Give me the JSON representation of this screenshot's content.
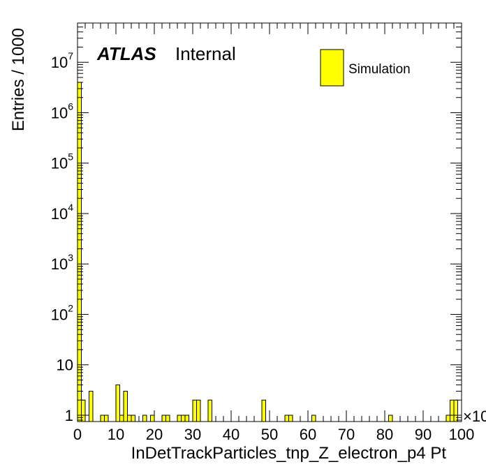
{
  "chart_data": {
    "type": "bar",
    "xlabel": "InDetTrackParticles_tnp_Z_electron_p4 Pt",
    "ylabel": "Entries / 1000",
    "x_multiplier_label": "×10",
    "xlim": [
      0,
      100
    ],
    "ylim": [
      0.75,
      60000000
    ],
    "y_scale": "log",
    "x_ticks": [
      "0",
      "10",
      "20",
      "30",
      "40",
      "50",
      "60",
      "70",
      "80",
      "90",
      "100"
    ],
    "y_ticks": [
      {
        "value": 1,
        "base": "1",
        "exp": ""
      },
      {
        "value": 10,
        "base": "10",
        "exp": ""
      },
      {
        "value": 100,
        "base": "10",
        "exp": "2"
      },
      {
        "value": 1000,
        "base": "10",
        "exp": "3"
      },
      {
        "value": 10000,
        "base": "10",
        "exp": "4"
      },
      {
        "value": 100000,
        "base": "10",
        "exp": "5"
      },
      {
        "value": 1000000,
        "base": "10",
        "exp": "6"
      },
      {
        "value": 10000000,
        "base": "10",
        "exp": "7"
      }
    ],
    "bin_width": 1,
    "series": [
      {
        "name": "Simulation",
        "color": "#ffff00",
        "bins": [
          {
            "x": 0,
            "y": 4000000
          },
          {
            "x": 1,
            "y": 2
          },
          {
            "x": 3,
            "y": 3
          },
          {
            "x": 6,
            "y": 1
          },
          {
            "x": 7,
            "y": 1
          },
          {
            "x": 10,
            "y": 4
          },
          {
            "x": 11,
            "y": 1
          },
          {
            "x": 12,
            "y": 3
          },
          {
            "x": 13,
            "y": 1
          },
          {
            "x": 14,
            "y": 1
          },
          {
            "x": 17,
            "y": 1
          },
          {
            "x": 19,
            "y": 1
          },
          {
            "x": 22,
            "y": 1
          },
          {
            "x": 23,
            "y": 1
          },
          {
            "x": 26,
            "y": 1
          },
          {
            "x": 27,
            "y": 1
          },
          {
            "x": 28,
            "y": 1
          },
          {
            "x": 30,
            "y": 2
          },
          {
            "x": 31,
            "y": 2
          },
          {
            "x": 34,
            "y": 2
          },
          {
            "x": 48,
            "y": 2
          },
          {
            "x": 54,
            "y": 1
          },
          {
            "x": 55,
            "y": 1
          },
          {
            "x": 61,
            "y": 1
          },
          {
            "x": 81,
            "y": 1
          },
          {
            "x": 96,
            "y": 1
          },
          {
            "x": 97,
            "y": 2
          },
          {
            "x": 98,
            "y": 2
          }
        ]
      }
    ]
  },
  "labels": {
    "atlas": "ATLAS",
    "internal": "Internal",
    "legend_entry": "Simulation"
  }
}
